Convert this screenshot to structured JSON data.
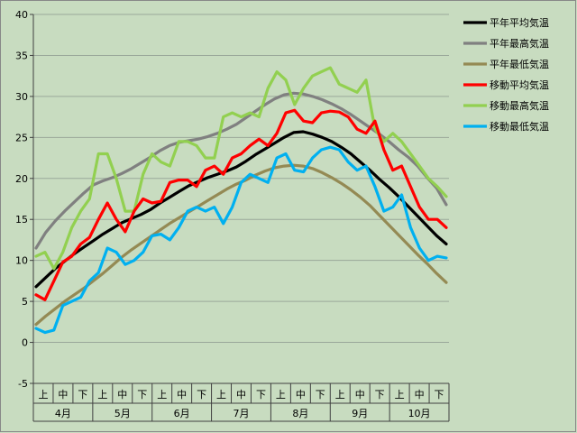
{
  "chart_data": {
    "type": "line",
    "ylim": [
      -5,
      40
    ],
    "yticks": [
      -5,
      0,
      5,
      10,
      15,
      20,
      25,
      30,
      35,
      40
    ],
    "grid": "horizontal",
    "legend_position": "right",
    "months": [
      "4月",
      "5月",
      "6月",
      "7月",
      "8月",
      "9月",
      "10月"
    ],
    "dekads": [
      "上",
      "中",
      "下"
    ],
    "x_points_per_month": [
      0,
      1,
      2,
      3
    ],
    "series": [
      {
        "name": "平年平均気温",
        "color": "#000000",
        "values": [
          6.8,
          7.9,
          9.0,
          9.9,
          10.8,
          11.6,
          12.4,
          13.2,
          13.9,
          14.6,
          15.1,
          15.6,
          16.2,
          17.0,
          17.7,
          18.4,
          19.1,
          19.6,
          20.1,
          20.5,
          20.9,
          21.4,
          22.1,
          22.9,
          23.6,
          24.3,
          25.0,
          25.6,
          25.7,
          25.4,
          25.0,
          24.5,
          23.8,
          23.0,
          22.0,
          21.0,
          19.9,
          18.9,
          17.8,
          16.6,
          15.4,
          14.2,
          13.0,
          12.0
        ]
      },
      {
        "name": "平年最高気温",
        "color": "#808080",
        "values": [
          11.5,
          13.4,
          14.8,
          16.0,
          17.1,
          18.2,
          19.2,
          19.7,
          20.1,
          20.6,
          21.2,
          21.9,
          22.6,
          23.4,
          24.0,
          24.4,
          24.6,
          24.8,
          25.1,
          25.5,
          26.0,
          26.6,
          27.4,
          28.2,
          29.0,
          29.7,
          30.2,
          30.4,
          30.3,
          30.0,
          29.6,
          29.1,
          28.5,
          27.8,
          27.0,
          26.2,
          25.4,
          24.5,
          23.5,
          22.6,
          21.5,
          20.1,
          18.8,
          16.8
        ]
      },
      {
        "name": "平年最低気温",
        "color": "#948a54",
        "values": [
          2.2,
          3.2,
          4.1,
          5.0,
          5.8,
          6.6,
          7.5,
          8.4,
          9.4,
          10.4,
          11.3,
          12.1,
          12.9,
          13.7,
          14.5,
          15.2,
          15.9,
          16.6,
          17.3,
          18.0,
          18.7,
          19.3,
          19.8,
          20.4,
          20.9,
          21.3,
          21.5,
          21.6,
          21.5,
          21.2,
          20.7,
          20.1,
          19.4,
          18.6,
          17.7,
          16.7,
          15.5,
          14.3,
          13.1,
          11.9,
          10.7,
          9.6,
          8.4,
          7.3
        ]
      },
      {
        "name": "移動平均気温",
        "color": "#ff0000",
        "values": [
          5.8,
          5.2,
          7.5,
          9.8,
          10.5,
          12.0,
          12.8,
          15.0,
          17.0,
          15.0,
          13.5,
          16.0,
          17.5,
          17.0,
          17.2,
          19.5,
          19.8,
          19.8,
          19.0,
          21.0,
          21.5,
          20.5,
          22.5,
          23.0,
          24.0,
          24.8,
          24.0,
          25.5,
          28.0,
          28.3,
          27.0,
          26.8,
          28.0,
          28.2,
          28.1,
          27.5,
          26.0,
          25.5,
          27.0,
          23.5,
          21.0,
          21.5,
          19.0,
          16.5,
          15.0,
          15.0,
          14.0
        ]
      },
      {
        "name": "移動最高気温",
        "color": "#92d050",
        "values": [
          10.5,
          11.0,
          9.0,
          11.0,
          14.0,
          16.0,
          17.5,
          23.0,
          23.0,
          20.0,
          16.0,
          16.0,
          20.5,
          23.0,
          22.0,
          21.5,
          24.5,
          24.5,
          24.0,
          22.5,
          22.5,
          27.5,
          28.0,
          27.5,
          28.0,
          27.5,
          31.0,
          33.0,
          32.0,
          29.0,
          31.0,
          32.5,
          33.0,
          33.5,
          31.5,
          31.0,
          30.5,
          32.0,
          26.0,
          24.5,
          25.5,
          24.5,
          23.0,
          21.5,
          20.0,
          19.0,
          17.8
        ]
      },
      {
        "name": "移動最低気温",
        "color": "#00b0f0",
        "values": [
          1.7,
          1.2,
          1.5,
          4.5,
          5.0,
          5.5,
          7.5,
          8.5,
          11.5,
          11.0,
          9.5,
          10.0,
          11.0,
          13.0,
          13.2,
          12.5,
          14.0,
          16.0,
          16.5,
          16.0,
          16.5,
          14.5,
          16.5,
          19.5,
          20.5,
          20.0,
          19.5,
          22.5,
          23.0,
          21.0,
          20.8,
          22.5,
          23.5,
          23.8,
          23.5,
          22.0,
          21.0,
          21.5,
          19.0,
          16.0,
          16.5,
          18.0,
          14.0,
          11.5,
          10.0,
          10.5,
          10.3
        ]
      }
    ]
  }
}
